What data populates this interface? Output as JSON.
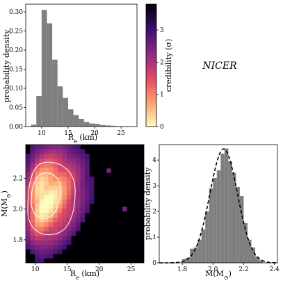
{
  "figure_label": "NICER",
  "colors": {
    "histogram_fill": "#7f7f7f",
    "contour": "#ffffff",
    "fit_curve": "#000000",
    "colormap": [
      "#000004",
      "#3b0f70",
      "#8c2981",
      "#de4968",
      "#fe9f6d",
      "#fcfdbf"
    ]
  },
  "colorbar": {
    "label": "credibility (σ)",
    "ticks": [
      "0",
      "1",
      "2",
      "3"
    ],
    "range": [
      0,
      3.8
    ]
  },
  "chart_data": [
    {
      "id": "radius-histogram",
      "type": "bar",
      "xlabel": "R_e (km)",
      "ylabel": "probability density",
      "xlim": [
        7,
        28
      ],
      "ylim": [
        0,
        0.32
      ],
      "xticks": [
        "10",
        "15",
        "20",
        "25"
      ],
      "yticks": [
        "0.00",
        "0.05",
        "0.10",
        "0.15",
        "0.20",
        "0.25",
        "0.30"
      ],
      "bin_width": 1,
      "bin_starts": [
        8,
        9,
        10,
        11,
        12,
        13,
        14,
        15,
        16,
        17,
        18,
        19,
        20,
        21,
        22,
        23,
        24,
        25,
        26
      ],
      "values": [
        0.005,
        0.08,
        0.305,
        0.27,
        0.175,
        0.105,
        0.075,
        0.045,
        0.03,
        0.02,
        0.012,
        0.008,
        0.007,
        0.004,
        0.003,
        0.002,
        0.001,
        0.001,
        0.001
      ]
    },
    {
      "id": "mass-radius-posterior",
      "type": "heatmap",
      "xlabel": "R_e (km)",
      "ylabel": "M(M_⊙)",
      "xlim": [
        8.5,
        27
      ],
      "ylim": [
        1.65,
        2.42
      ],
      "xticks": [
        "10",
        "15",
        "20",
        "25"
      ],
      "yticks": [
        "1.8",
        "2.0",
        "2.2"
      ],
      "peak": {
        "R": 11,
        "M": 2.07
      },
      "spread": {
        "R": 2.6,
        "M": 0.17
      },
      "contours_sigma": [
        1,
        2
      ],
      "outlier_cells": [
        {
          "R": 24,
          "M": 2.0
        },
        {
          "R": 21.5,
          "M": 2.25
        }
      ]
    },
    {
      "id": "mass-histogram",
      "type": "bar",
      "xlabel": "M(M_⊙)",
      "ylabel": "probability density",
      "xlim": [
        1.65,
        2.42
      ],
      "ylim": [
        0,
        4.6
      ],
      "xticks": [
        "1.8",
        "2.0",
        "2.2",
        "2.4"
      ],
      "yticks": [
        "0",
        "1",
        "2",
        "3",
        "4"
      ],
      "bin_width": 0.025,
      "bin_starts": [
        1.8,
        1.825,
        1.85,
        1.875,
        1.9,
        1.925,
        1.95,
        1.975,
        2.0,
        2.025,
        2.05,
        2.075,
        2.1,
        2.125,
        2.15,
        2.175,
        2.2,
        2.225,
        2.25,
        2.275,
        2.3
      ],
      "values": [
        0.15,
        0.2,
        0.55,
        0.6,
        0.9,
        1.3,
        2.0,
        2.9,
        3.3,
        3.6,
        4.25,
        4.45,
        3.95,
        3.5,
        2.95,
        2.6,
        1.55,
        0.9,
        0.6,
        0.25,
        0.1
      ],
      "fit": {
        "type": "gaussian",
        "mean": 2.07,
        "sigma": 0.09
      }
    }
  ]
}
